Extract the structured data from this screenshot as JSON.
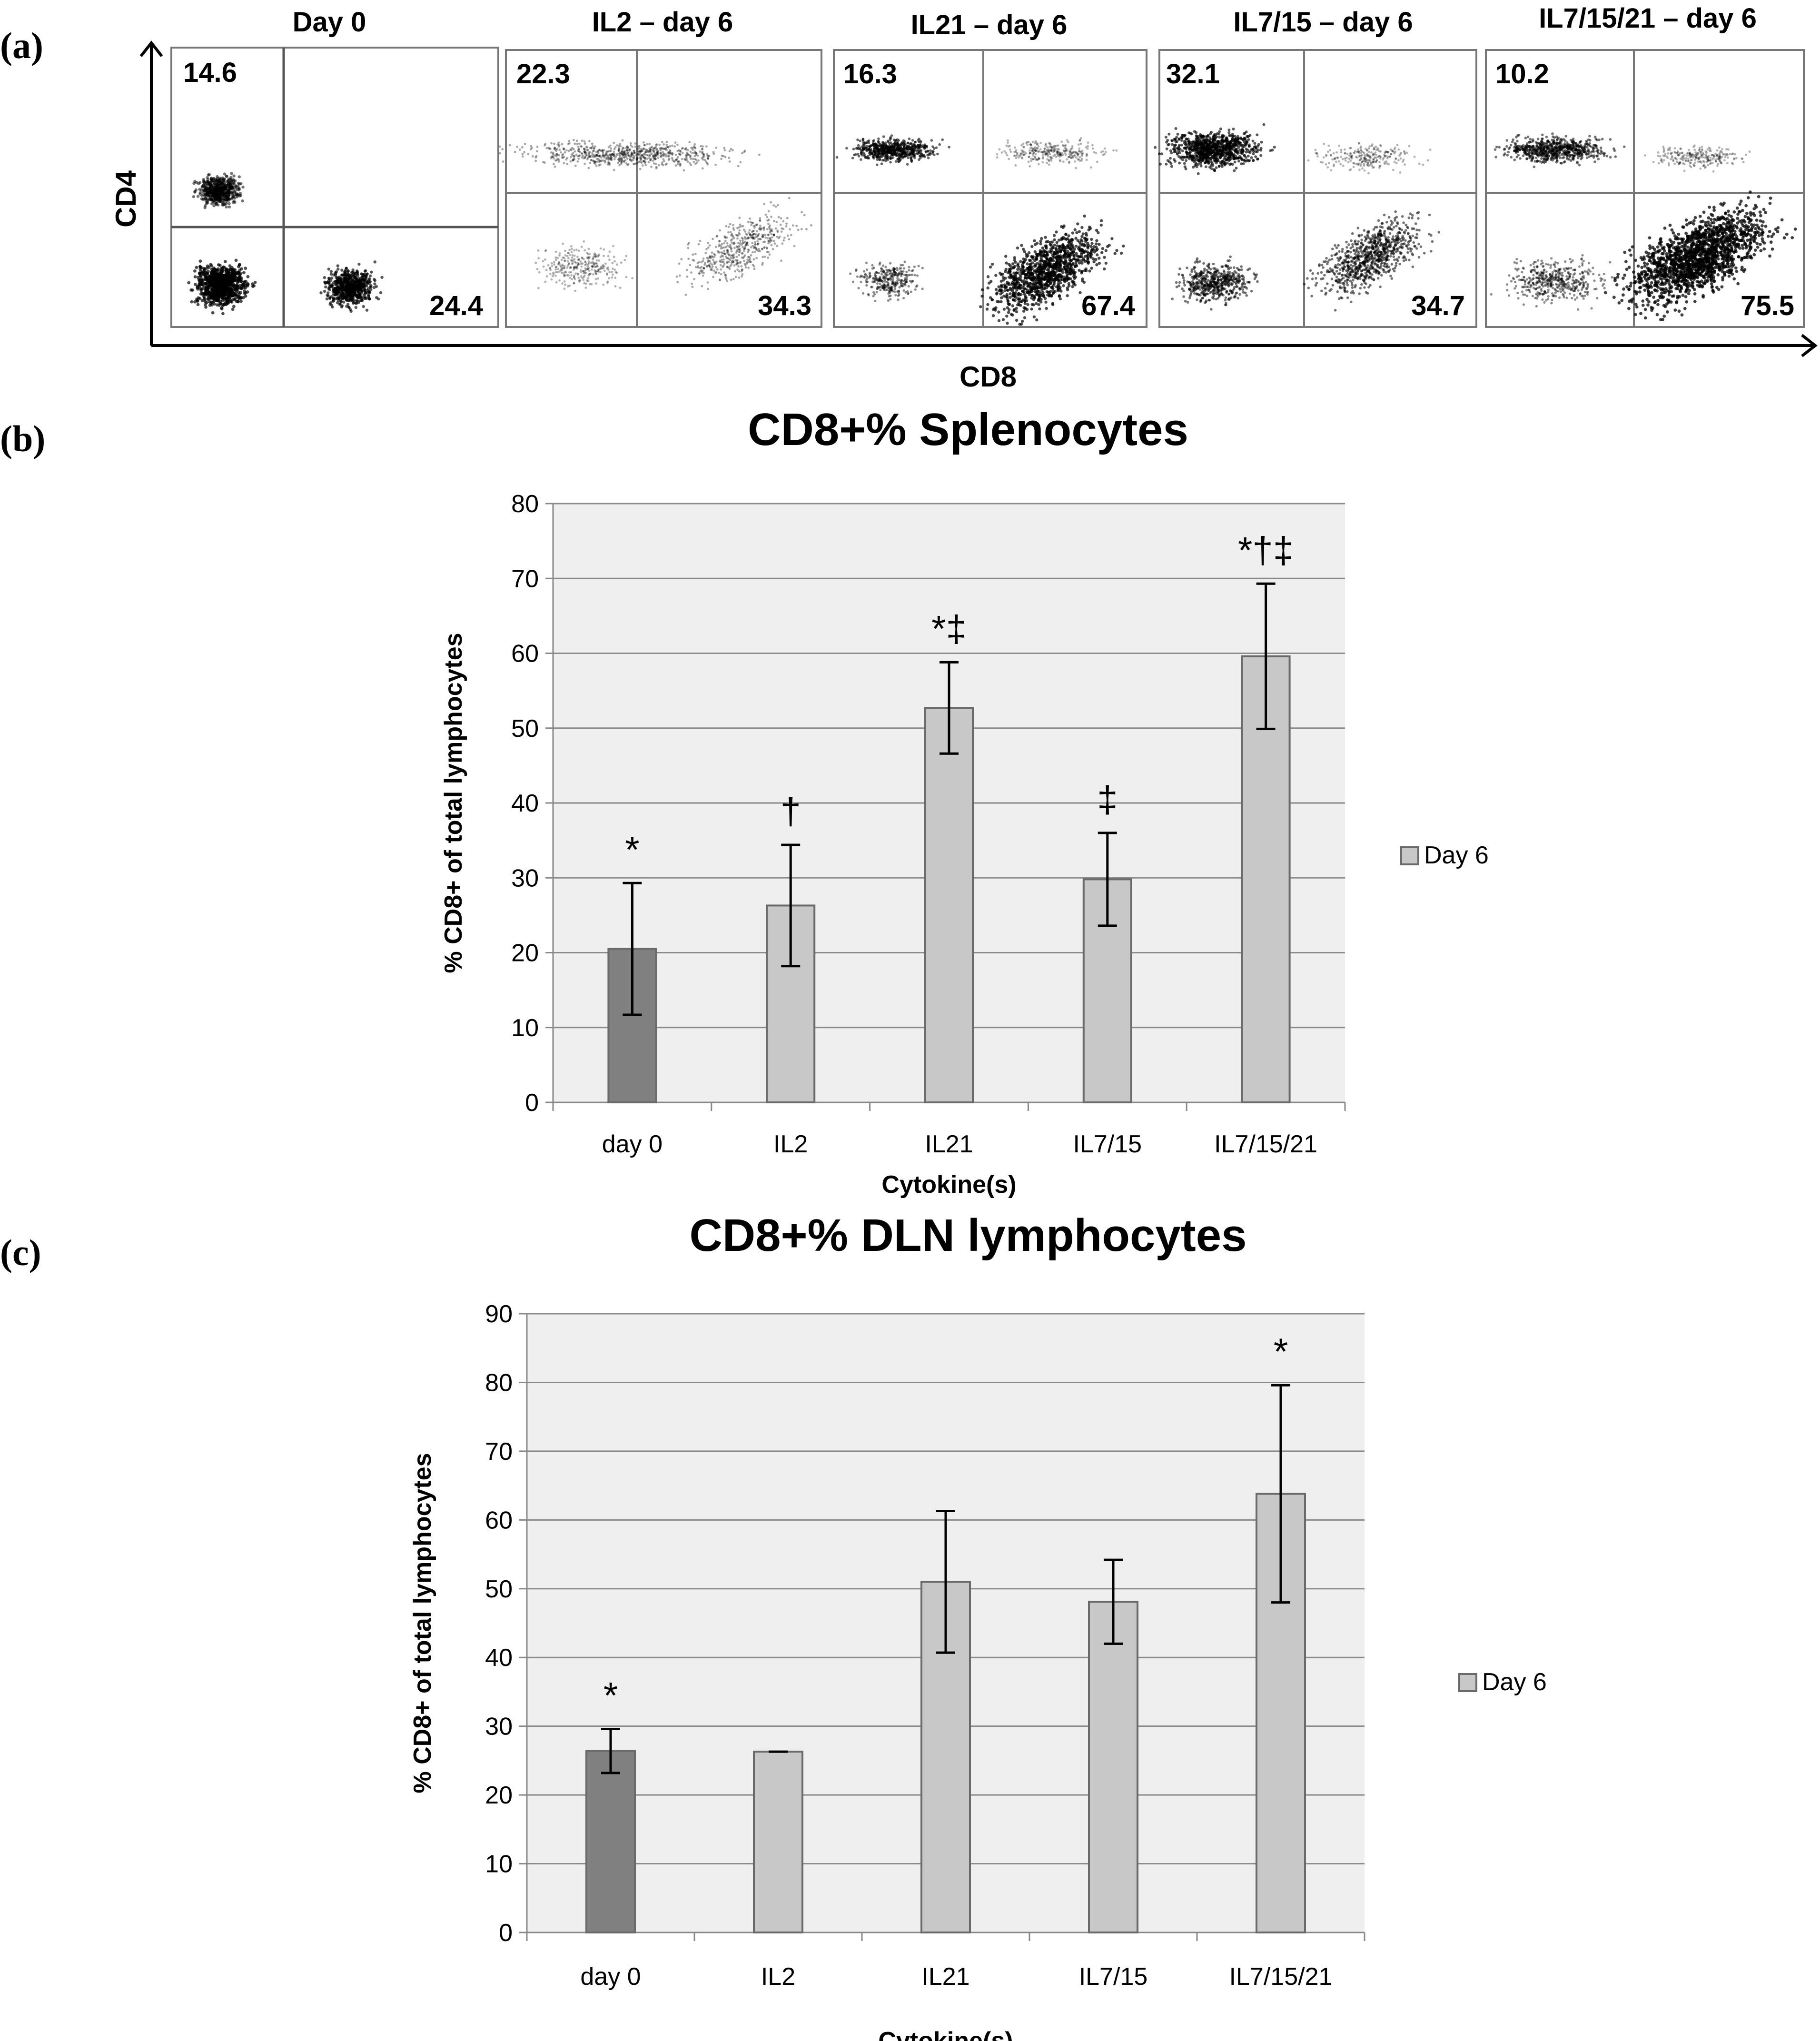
{
  "panel_labels": [
    "(a)",
    "(b)",
    "(c)"
  ],
  "colors": {
    "day0_bar": "#808080",
    "day6_bar": "#c8c8c8",
    "plot_bg": "#efefef",
    "grid": "#8a8a8a",
    "ink": "#000000"
  },
  "chart_data": [
    {
      "type": "scatter",
      "title": "",
      "xlabel": "CD8",
      "ylabel": "CD4",
      "panels": [
        {
          "label": "Day 0",
          "upper_left": "14.6",
          "lower_right": "24.4"
        },
        {
          "label": "IL2 – day 6",
          "upper_left": "22.3",
          "lower_right": "34.3"
        },
        {
          "label": "IL21 – day 6",
          "upper_left": "16.3",
          "lower_right": "67.4"
        },
        {
          "label": "IL7/15 – day 6",
          "upper_left": "32.1",
          "lower_right": "34.7"
        },
        {
          "label": "IL7/15/21 – day 6",
          "upper_left": "10.2",
          "lower_right": "75.5"
        }
      ]
    },
    {
      "type": "bar",
      "title": "CD8+% Splenocytes",
      "xlabel": "Cytokine(s)",
      "ylabel": "% CD8+ of total lymphocytes",
      "ylim": [
        0,
        80
      ],
      "yticks": [
        "0",
        "10",
        "20",
        "30",
        "40",
        "50",
        "60",
        "70",
        "80"
      ],
      "categories": [
        "day 0",
        "IL2",
        "IL21",
        "IL7/15",
        "IL7/15/21"
      ],
      "series": [
        {
          "name": "Day 6",
          "values": [
            20.5,
            26.3,
            52.7,
            29.8,
            59.6
          ]
        }
      ],
      "errors": [
        8.8,
        8.1,
        6.1,
        6.2,
        9.7
      ],
      "annotations": [
        "*",
        "†",
        "*‡",
        "‡",
        "*†‡"
      ],
      "legend": "Day 6"
    },
    {
      "type": "bar",
      "title": "CD8+% DLN lymphocytes",
      "xlabel": "Cytokine(s)",
      "ylabel": "% CD8+ of total lymphocytes",
      "ylim": [
        0,
        90
      ],
      "yticks": [
        "0",
        "10",
        "20",
        "30",
        "40",
        "50",
        "60",
        "70",
        "80",
        "90"
      ],
      "categories": [
        "day 0",
        "IL2",
        "IL21",
        "IL7/15",
        "IL7/15/21"
      ],
      "series": [
        {
          "name": "Day 6",
          "values": [
            26.4,
            26.3,
            51.0,
            48.1,
            63.8
          ]
        }
      ],
      "errors": [
        3.2,
        0.0,
        10.3,
        6.1,
        15.8
      ],
      "annotations": [
        "*",
        "",
        "",
        "",
        "*"
      ],
      "legend": "Day 6"
    }
  ]
}
